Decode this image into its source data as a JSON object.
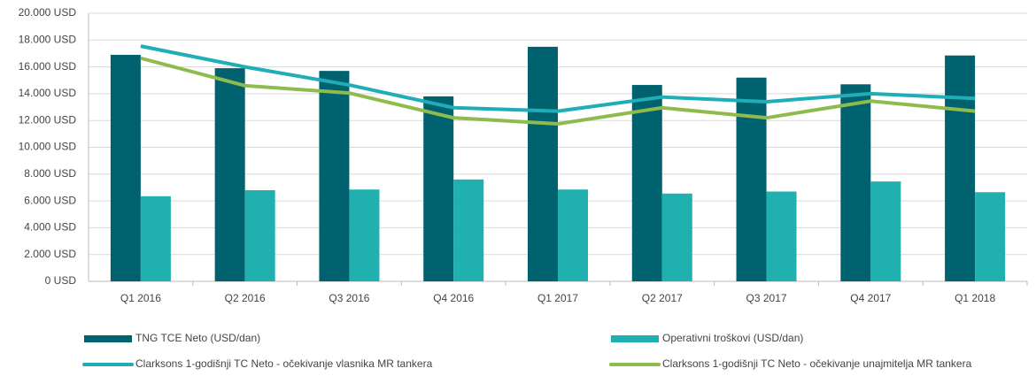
{
  "chart_data": {
    "type": "bar",
    "categories": [
      "Q1 2016",
      "Q2 2016",
      "Q3 2016",
      "Q4 2016",
      "Q1 2017",
      "Q2 2017",
      "Q3 2017",
      "Q4 2017",
      "Q1 2018"
    ],
    "series": [
      {
        "name": "TNG TCE Neto (USD/dan)",
        "type": "bar",
        "color": "#00626e",
        "values": [
          16900,
          15900,
          15700,
          13800,
          17500,
          14650,
          15200,
          14700,
          16850
        ]
      },
      {
        "name": "Operativni troškovi (USD/dan)",
        "type": "bar",
        "color": "#20b0b0",
        "values": [
          6350,
          6800,
          6850,
          7600,
          6850,
          6550,
          6700,
          7450,
          6650
        ]
      },
      {
        "name": "Clarksons 1-godišnji TC Neto - očekivanje vlasnika MR tankera",
        "type": "line",
        "color": "#1fadb8",
        "values": [
          17550,
          16000,
          14650,
          12950,
          12700,
          13750,
          13400,
          14000,
          13650
        ]
      },
      {
        "name": "Clarksons 1-godišnji TC Neto - očekivanje unajmitelja MR tankera",
        "type": "line",
        "color": "#8fba4c",
        "values": [
          16650,
          14600,
          14050,
          12200,
          11750,
          12950,
          12200,
          13450,
          12700
        ]
      }
    ],
    "ylim": [
      0,
      20000
    ],
    "yticks": [
      {
        "value": 0,
        "label": "0 USD"
      },
      {
        "value": 2000,
        "label": "2.000 USD"
      },
      {
        "value": 4000,
        "label": "4.000 USD"
      },
      {
        "value": 6000,
        "label": "6.000 USD"
      },
      {
        "value": 8000,
        "label": "8.000 USD"
      },
      {
        "value": 10000,
        "label": "10.000 USD"
      },
      {
        "value": 12000,
        "label": "12.000 USD"
      },
      {
        "value": 14000,
        "label": "14.000 USD"
      },
      {
        "value": 16000,
        "label": "16.000 USD"
      },
      {
        "value": 18000,
        "label": "18.000 USD"
      },
      {
        "value": 20000,
        "label": "20.000 USD"
      }
    ],
    "grid": true,
    "legend": "bottom"
  }
}
